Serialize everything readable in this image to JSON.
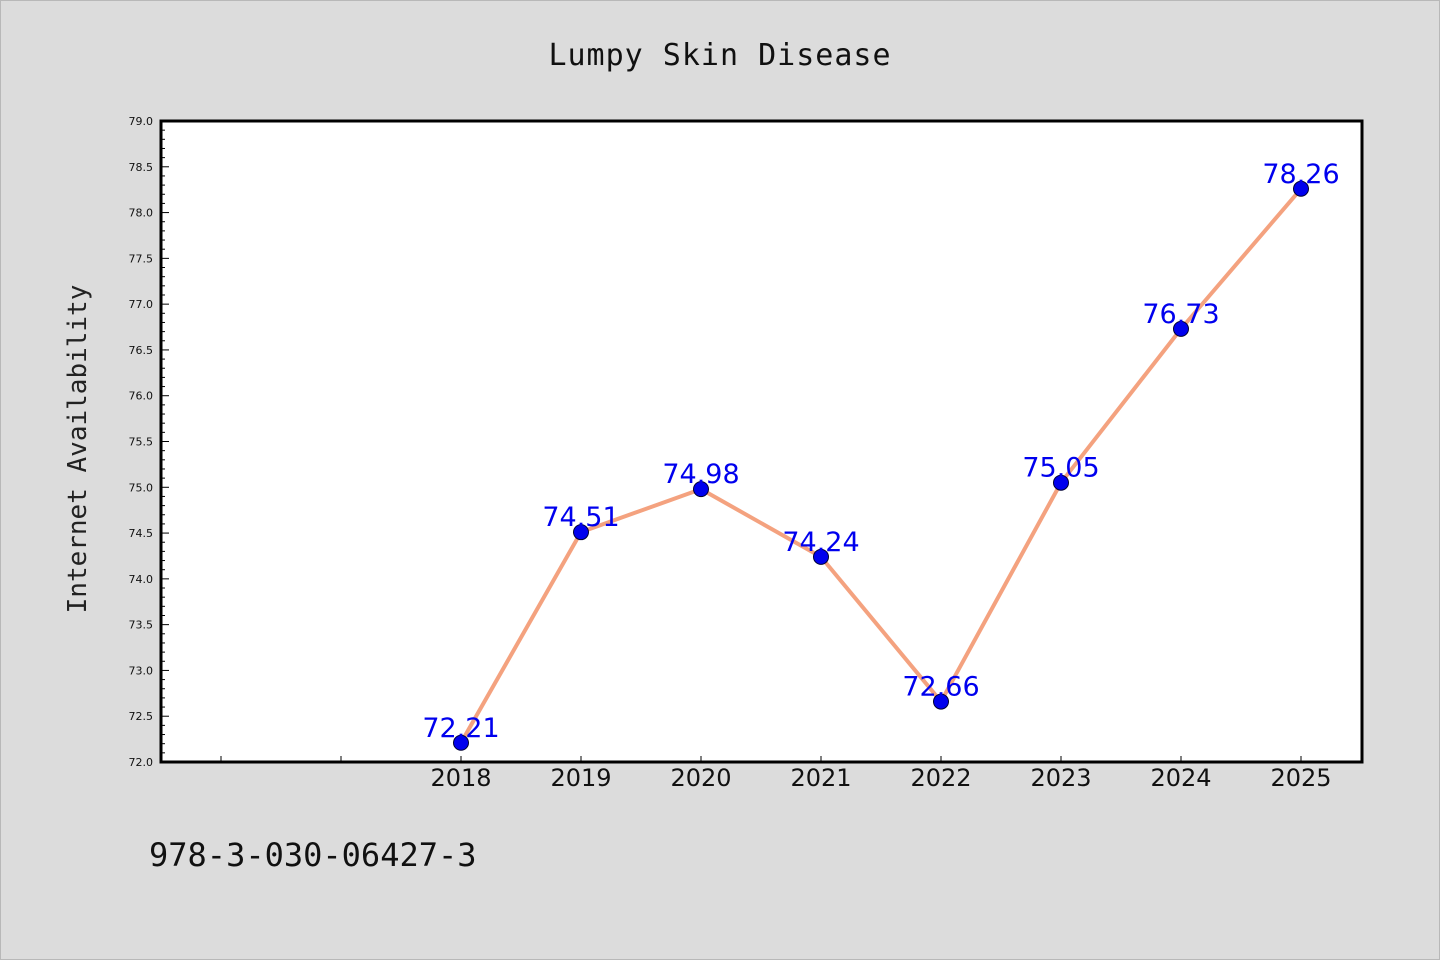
{
  "chart_data": {
    "type": "line",
    "title": "Lumpy Skin Disease",
    "ylabel": "Internet Availability",
    "xlabel": "",
    "x": [
      "2018",
      "2019",
      "2020",
      "2021",
      "2022",
      "2023",
      "2024",
      "2025"
    ],
    "series": [
      {
        "values": [
          72.21,
          74.51,
          74.98,
          74.24,
          72.66,
          75.05,
          76.73,
          78.26
        ],
        "data_labels": [
          "72.21",
          "74.51",
          "74.98",
          "74.24",
          "72.66",
          "75.05",
          "76.73",
          "78.26"
        ],
        "line_color": "#f4a27f",
        "marker_color": "#0000ee"
      }
    ],
    "x_slots_before_data": 2,
    "ylim": [
      72.0,
      79.0
    ],
    "yticks": [
      "72.0",
      "72.5",
      "73.0",
      "73.5",
      "74.0",
      "74.5",
      "75.0",
      "75.5",
      "76.0",
      "76.5",
      "77.0",
      "77.5",
      "78.0",
      "78.5",
      "79.0"
    ],
    "grid": false,
    "legend": "none",
    "background": "#dcdcdc",
    "plot_background": "#ffffff",
    "label_color": "#0000ee"
  },
  "footer": {
    "isbn": "978-3-030-06427-3"
  }
}
